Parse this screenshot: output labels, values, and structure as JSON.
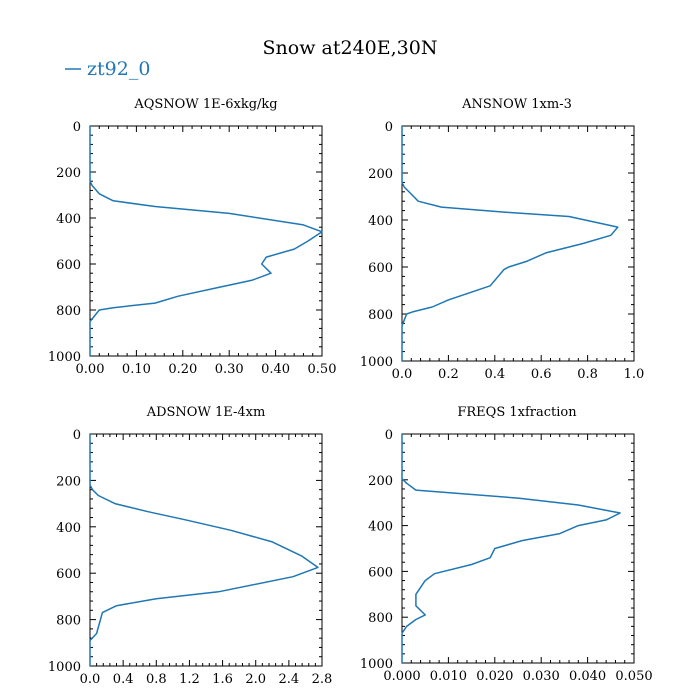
{
  "figure": {
    "title": "Snow at240E,30N",
    "legend": {
      "label": "zt92_0",
      "color": "#1f77b4",
      "placement": "top-left"
    }
  },
  "chart_data": [
    {
      "type": "line",
      "title": "AQSNOW  1E-6xkg/kg",
      "xlim": [
        0,
        0.5
      ],
      "ylim": [
        0,
        1000
      ],
      "y_inverted": true,
      "xticks": [
        0,
        0.1,
        0.2,
        0.3,
        0.4,
        0.5
      ],
      "xtick_labels": [
        "0.00",
        "0.10",
        "0.20",
        "0.30",
        "0.40",
        "0.50"
      ],
      "yticks": [
        0,
        200,
        400,
        600,
        800,
        1000
      ],
      "ytick_labels": [
        "0",
        "200",
        "400",
        "600",
        "800",
        "1000"
      ],
      "series": [
        {
          "name": "zt92_0",
          "color": "#1f77b4",
          "x": [
            0,
            0,
            0.005,
            0.02,
            0.05,
            0.14,
            0.3,
            0.46,
            0.5,
            0.47,
            0.44,
            0.38,
            0.37,
            0.39,
            0.35,
            0.27,
            0.19,
            0.14,
            0.05,
            0.02,
            0,
            0
          ],
          "y": [
            0,
            240,
            260,
            295,
            325,
            350,
            380,
            430,
            460,
            500,
            535,
            570,
            600,
            640,
            670,
            705,
            740,
            770,
            790,
            800,
            850,
            1000
          ]
        }
      ]
    },
    {
      "type": "line",
      "title": "ANSNOW  1xm-3",
      "xlim": [
        0,
        1.0
      ],
      "ylim": [
        0,
        1000
      ],
      "y_inverted": true,
      "xticks": [
        0,
        0.2,
        0.4,
        0.6,
        0.8,
        1.0
      ],
      "xtick_labels": [
        "0.0",
        "0.2",
        "0.4",
        "0.6",
        "0.8",
        "1.0"
      ],
      "yticks": [
        0,
        200,
        400,
        600,
        800,
        1000
      ],
      "ytick_labels": [
        "0",
        "200",
        "400",
        "600",
        "800",
        "1000"
      ],
      "series": [
        {
          "name": "zt92_0",
          "color": "#1f77b4",
          "x": [
            0,
            0,
            0.01,
            0.04,
            0.07,
            0.17,
            0.42,
            0.72,
            0.93,
            0.9,
            0.78,
            0.62,
            0.54,
            0.46,
            0.44,
            0.38,
            0.2,
            0.13,
            0.05,
            0.02,
            0,
            0
          ],
          "y": [
            0,
            240,
            260,
            290,
            320,
            345,
            365,
            385,
            430,
            465,
            500,
            540,
            575,
            600,
            610,
            680,
            740,
            770,
            790,
            800,
            850,
            1000
          ]
        }
      ]
    },
    {
      "type": "line",
      "title": "ADSNOW  1E-4xm",
      "xlim": [
        0,
        2.8
      ],
      "ylim": [
        0,
        1000
      ],
      "y_inverted": true,
      "xticks": [
        0,
        0.4,
        0.8,
        1.2,
        1.6,
        2.0,
        2.4,
        2.8
      ],
      "xtick_labels": [
        "0.0",
        "0.4",
        "0.8",
        "1.2",
        "1.6",
        "2.0",
        "2.4",
        "2.8"
      ],
      "yticks": [
        0,
        200,
        400,
        600,
        800,
        1000
      ],
      "ytick_labels": [
        "0",
        "200",
        "400",
        "600",
        "800",
        "1000"
      ],
      "series": [
        {
          "name": "zt92_0",
          "color": "#1f77b4",
          "x": [
            0,
            0,
            0.03,
            0.1,
            0.3,
            0.7,
            1.15,
            1.7,
            2.2,
            2.55,
            2.75,
            2.45,
            1.55,
            0.8,
            0.32,
            0.15,
            0.08,
            0,
            0
          ],
          "y": [
            0,
            220,
            240,
            265,
            300,
            335,
            370,
            415,
            465,
            525,
            575,
            615,
            680,
            710,
            740,
            770,
            860,
            890,
            1000
          ]
        }
      ]
    },
    {
      "type": "line",
      "title": "FREQS  1xfraction",
      "xlim": [
        0,
        0.05
      ],
      "ylim": [
        0,
        1000
      ],
      "y_inverted": true,
      "xticks": [
        0,
        0.01,
        0.02,
        0.03,
        0.04,
        0.05
      ],
      "xtick_labels": [
        "0.000",
        "0.010",
        "0.020",
        "0.030",
        "0.040",
        "0.050"
      ],
      "yticks": [
        0,
        200,
        400,
        600,
        800,
        1000
      ],
      "ytick_labels": [
        "0",
        "200",
        "400",
        "600",
        "800",
        "1000"
      ],
      "series": [
        {
          "name": "zt92_0",
          "color": "#1f77b4",
          "x": [
            0,
            0,
            0.001,
            0.003,
            0.025,
            0.038,
            0.047,
            0.044,
            0.038,
            0.034,
            0.026,
            0.02,
            0.019,
            0.015,
            0.007,
            0.005,
            0.003,
            0.003,
            0.005,
            0.003,
            0.001,
            0,
            0
          ],
          "y": [
            0,
            195,
            215,
            245,
            280,
            310,
            345,
            375,
            400,
            435,
            465,
            500,
            540,
            570,
            610,
            640,
            700,
            750,
            790,
            810,
            840,
            870,
            1000
          ]
        }
      ]
    }
  ]
}
